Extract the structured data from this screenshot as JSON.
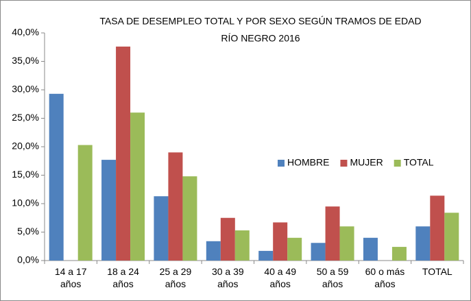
{
  "chart_data": {
    "type": "bar",
    "title": "TASA DE DESEMPLEO TOTAL Y POR SEXO SEGÚN TRAMOS DE EDAD",
    "subtitle": "RÍO NEGRO 2016",
    "categories": [
      "14 a 17 años",
      "18 a 24 años",
      "25 a 29 años",
      "30 a 39 años",
      "40 a 49 años",
      "50 a 59 años",
      "60 o más años",
      "TOTAL"
    ],
    "series": [
      {
        "name": "HOMBRE",
        "color": "#4f81bd",
        "values": [
          29.3,
          17.7,
          11.3,
          3.4,
          1.7,
          3.1,
          4.0,
          6.0
        ]
      },
      {
        "name": "MUJER",
        "color": "#c0504d",
        "values": [
          0,
          37.6,
          19.0,
          7.5,
          6.7,
          9.5,
          0,
          11.4
        ]
      },
      {
        "name": "TOTAL",
        "color": "#9bbb59",
        "values": [
          20.3,
          26.0,
          14.8,
          5.3,
          4.0,
          6.0,
          2.4,
          8.4
        ]
      }
    ],
    "ylim": [
      0,
      40
    ],
    "yticks": [
      {
        "value": 0,
        "label": "0,0%"
      },
      {
        "value": 5,
        "label": "5,0%"
      },
      {
        "value": 10,
        "label": "10,0%"
      },
      {
        "value": 15,
        "label": "15,0%"
      },
      {
        "value": 20,
        "label": "20,0%"
      },
      {
        "value": 25,
        "label": "25,0%"
      },
      {
        "value": 30,
        "label": "30,0%"
      },
      {
        "value": 35,
        "label": "35,0%"
      },
      {
        "value": 40,
        "label": "40,0%"
      }
    ],
    "grid": false,
    "legend": "right"
  }
}
